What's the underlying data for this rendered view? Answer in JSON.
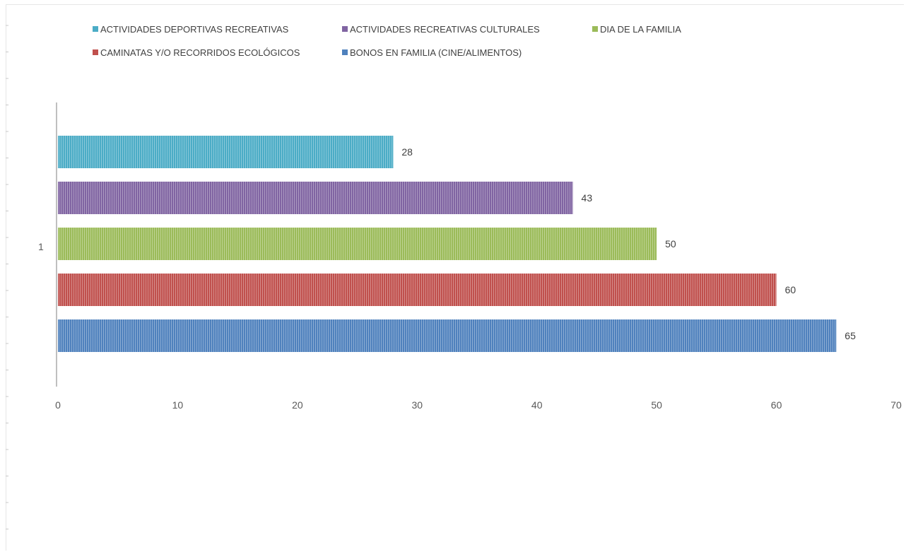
{
  "chart_data": {
    "type": "bar",
    "orientation": "horizontal",
    "categories": [
      "1"
    ],
    "series": [
      {
        "name": "ACTIVIDADES DEPORTIVAS RECREATIVAS",
        "values": [
          28
        ],
        "color": "#4bacc6"
      },
      {
        "name": "ACTIVIDADES RECREATIVAS CULTURALES",
        "values": [
          43
        ],
        "color": "#8064a2"
      },
      {
        "name": "DIA DE LA FAMILIA",
        "values": [
          50
        ],
        "color": "#9bbb59"
      },
      {
        "name": "CAMINATAS Y/O RECORRIDOS ECOLÓGICOS",
        "values": [
          60
        ],
        "color": "#c0504d"
      },
      {
        "name": "BONOS EN FAMILIA (CINE/ALIMENTOS)",
        "values": [
          65
        ],
        "color": "#4f81bd"
      }
    ],
    "xticks": [
      "0",
      "10",
      "20",
      "30",
      "40",
      "50",
      "60",
      "70"
    ],
    "xlim": [
      0,
      70
    ],
    "data_labels": true,
    "grid": false,
    "legend": "top",
    "bar_fill": "vertical-stripes"
  }
}
